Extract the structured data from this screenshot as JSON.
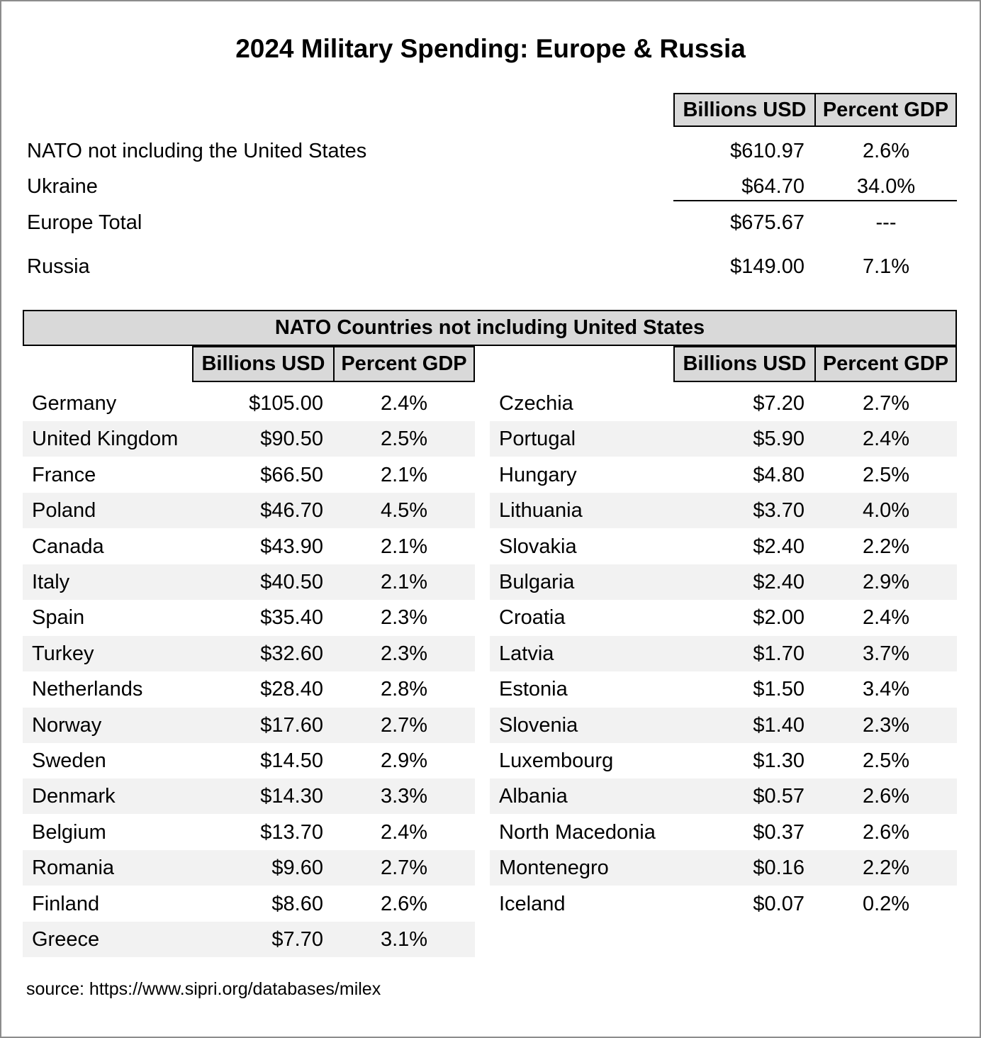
{
  "title": "2024 Military Spending: Europe & Russia",
  "summary": {
    "col_billions": "Billions USD",
    "col_percent": "Percent GDP",
    "rows": [
      {
        "label": "NATO not including the United States",
        "billions": "$610.97",
        "percent": "2.6%"
      },
      {
        "label": "Ukraine",
        "billions": "$64.70",
        "percent": "34.0%"
      },
      {
        "label": "Europe Total",
        "billions": "$675.67",
        "percent": "---"
      },
      {
        "label": "Russia",
        "billions": "$149.00",
        "percent": "7.1%"
      }
    ]
  },
  "nato": {
    "banner": "NATO Countries not including United States",
    "col_billions": "Billions USD",
    "col_percent": "Percent GDP",
    "left": [
      {
        "country": "Germany",
        "billions": "$105.00",
        "percent": "2.4%"
      },
      {
        "country": "United Kingdom",
        "billions": "$90.50",
        "percent": "2.5%"
      },
      {
        "country": "France",
        "billions": "$66.50",
        "percent": "2.1%"
      },
      {
        "country": "Poland",
        "billions": "$46.70",
        "percent": "4.5%"
      },
      {
        "country": "Canada",
        "billions": "$43.90",
        "percent": "2.1%"
      },
      {
        "country": "Italy",
        "billions": "$40.50",
        "percent": "2.1%"
      },
      {
        "country": "Spain",
        "billions": "$35.40",
        "percent": "2.3%"
      },
      {
        "country": "Turkey",
        "billions": "$32.60",
        "percent": "2.3%"
      },
      {
        "country": "Netherlands",
        "billions": "$28.40",
        "percent": "2.8%"
      },
      {
        "country": "Norway",
        "billions": "$17.60",
        "percent": "2.7%"
      },
      {
        "country": "Sweden",
        "billions": "$14.50",
        "percent": "2.9%"
      },
      {
        "country": "Denmark",
        "billions": "$14.30",
        "percent": "3.3%"
      },
      {
        "country": "Belgium",
        "billions": "$13.70",
        "percent": "2.4%"
      },
      {
        "country": "Romania",
        "billions": "$9.60",
        "percent": "2.7%"
      },
      {
        "country": "Finland",
        "billions": "$8.60",
        "percent": "2.6%"
      },
      {
        "country": "Greece",
        "billions": "$7.70",
        "percent": "3.1%"
      }
    ],
    "right": [
      {
        "country": "Czechia",
        "billions": "$7.20",
        "percent": "2.7%"
      },
      {
        "country": "Portugal",
        "billions": "$5.90",
        "percent": "2.4%"
      },
      {
        "country": "Hungary",
        "billions": "$4.80",
        "percent": "2.5%"
      },
      {
        "country": "Lithuania",
        "billions": "$3.70",
        "percent": "4.0%"
      },
      {
        "country": "Slovakia",
        "billions": "$2.40",
        "percent": "2.2%"
      },
      {
        "country": "Bulgaria",
        "billions": "$2.40",
        "percent": "2.9%"
      },
      {
        "country": "Croatia",
        "billions": "$2.00",
        "percent": "2.4%"
      },
      {
        "country": "Latvia",
        "billions": "$1.70",
        "percent": "3.7%"
      },
      {
        "country": "Estonia",
        "billions": "$1.50",
        "percent": "3.4%"
      },
      {
        "country": "Slovenia",
        "billions": "$1.40",
        "percent": "2.3%"
      },
      {
        "country": "Luxembourg",
        "billions": "$1.30",
        "percent": "2.5%"
      },
      {
        "country": "Albania",
        "billions": "$0.57",
        "percent": "2.6%"
      },
      {
        "country": "North Macedonia",
        "billions": "$0.37",
        "percent": "2.6%"
      },
      {
        "country": "Montenegro",
        "billions": "$0.16",
        "percent": "2.2%"
      },
      {
        "country": "Iceland",
        "billions": "$0.07",
        "percent": "0.2%"
      }
    ]
  },
  "source": "source: https://www.sipri.org/databases/milex"
}
